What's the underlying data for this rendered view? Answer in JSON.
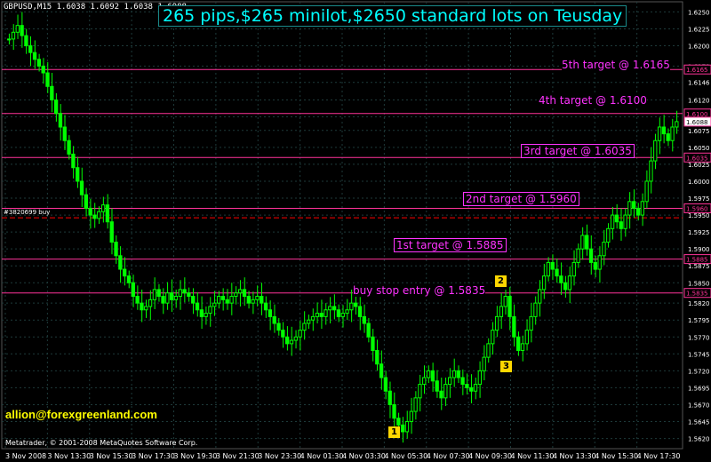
{
  "header": {
    "symbol_info": "GBPUSD,M15  1.6038 1.6092 1.6038 1.6088",
    "banner": "265 pips,$265 minilot,$2650 standard lots on Teusday",
    "email": "allion@forexgreenland.com",
    "copyright": "Metatrader, © 2001-2008 MetaQuotes Software Corp.",
    "order_label": "#3820699 buy"
  },
  "annotations": {
    "entry": "buy stop entry @ 1.5835",
    "target1": "1st target @ 1.5885",
    "target2": "2nd target @ 1.5960",
    "target3": "3rd target @ 1.6035",
    "target4": "4th target @ 1.6100",
    "target5": "5th target @ 1.6165",
    "marker1": "1",
    "marker2": "2",
    "marker3": "3"
  },
  "colors": {
    "background": "#000000",
    "grid": "#1e3a3a",
    "candle_body": "#00ff00",
    "candle_bear": "#000000",
    "level_line": "#ff3399",
    "label": "#ff33ff",
    "banner_text": "#00ffff",
    "email_text": "#ffff00"
  },
  "chart_data": {
    "type": "candlestick",
    "title": "265 pips,$265 minilot,$2650 standard lots on Teusday",
    "ylim": [
      1.5605,
      1.6265
    ],
    "y_ticks": [
      "1.6250",
      "1.6225",
      "1.6200",
      "1.6170",
      "1.6146",
      "1.6120",
      "1.6095",
      "1.6075",
      "1.6050",
      "1.6025",
      "1.6000",
      "1.5975",
      "1.5950",
      "1.5925",
      "1.5900",
      "1.5875",
      "1.5850",
      "1.5820",
      "1.5795",
      "1.5770",
      "1.5745",
      "1.5720",
      "1.5695",
      "1.5670",
      "1.5645",
      "1.5620"
    ],
    "x_ticks": [
      "3 Nov 2008",
      "3 Nov 13:30",
      "3 Nov 15:30",
      "3 Nov 17:30",
      "3 Nov 19:30",
      "3 Nov 21:30",
      "3 Nov 23:30",
      "4 Nov 01:30",
      "4 Nov 03:30",
      "4 Nov 05:30",
      "4 Nov 07:30",
      "4 Nov 09:30",
      "4 Nov 11:30",
      "4 Nov 13:30",
      "4 Nov 15:30",
      "4 Nov 17:30"
    ],
    "levels": [
      {
        "name": "5th target",
        "value": 1.6165,
        "label": "1.6165"
      },
      {
        "name": "4th target",
        "value": 1.61,
        "label": "1.6100"
      },
      {
        "name": "current",
        "value": 1.6088,
        "label": "1.6088"
      },
      {
        "name": "3rd target",
        "value": 1.6035,
        "label": "1.6035"
      },
      {
        "name": "2nd target",
        "value": 1.596,
        "label": "1.5960"
      },
      {
        "name": "1st target",
        "value": 1.5885,
        "label": "1.5885"
      },
      {
        "name": "entry",
        "value": 1.5835,
        "label": "1.5835"
      }
    ],
    "order_level": 1.5946,
    "close_series": [
      1.621,
      1.622,
      1.623,
      1.6215,
      1.62,
      1.619,
      1.618,
      1.617,
      1.616,
      1.614,
      1.612,
      1.61,
      1.608,
      1.606,
      1.604,
      1.602,
      1.6,
      1.598,
      1.596,
      1.595,
      1.5945,
      1.5955,
      1.5965,
      1.594,
      1.591,
      1.589,
      1.587,
      1.586,
      1.585,
      1.583,
      1.582,
      1.581,
      1.5815,
      1.5825,
      1.584,
      1.583,
      1.582,
      1.5835,
      1.5825,
      1.583,
      1.584,
      1.5835,
      1.583,
      1.582,
      1.581,
      1.58,
      1.5805,
      1.5815,
      1.582,
      1.583,
      1.5825,
      1.582,
      1.583,
      1.5835,
      1.584,
      1.583,
      1.582,
      1.5825,
      1.583,
      1.582,
      1.581,
      1.58,
      1.579,
      1.578,
      1.577,
      1.576,
      1.5765,
      1.577,
      1.578,
      1.579,
      1.5795,
      1.58,
      1.5805,
      1.58,
      1.581,
      1.5815,
      1.581,
      1.58,
      1.5805,
      1.581,
      1.582,
      1.5815,
      1.58,
      1.579,
      1.577,
      1.575,
      1.573,
      1.571,
      1.569,
      1.567,
      1.565,
      1.564,
      1.563,
      1.5645,
      1.566,
      1.568,
      1.57,
      1.571,
      1.572,
      1.5705,
      1.569,
      1.568,
      1.57,
      1.571,
      1.572,
      1.571,
      1.57,
      1.5695,
      1.569,
      1.57,
      1.572,
      1.574,
      1.576,
      1.578,
      1.58,
      1.5815,
      1.583,
      1.58,
      1.577,
      1.575,
      1.576,
      1.578,
      1.58,
      1.582,
      1.584,
      1.586,
      1.588,
      1.587,
      1.586,
      1.585,
      1.584,
      1.586,
      1.588,
      1.59,
      1.592,
      1.59,
      1.588,
      1.587,
      1.589,
      1.591,
      1.593,
      1.595,
      1.594,
      1.593,
      1.595,
      1.597,
      1.596,
      1.595,
      1.597,
      1.6,
      1.603,
      1.606,
      1.608,
      1.607,
      1.606,
      1.608,
      1.6088
    ]
  }
}
